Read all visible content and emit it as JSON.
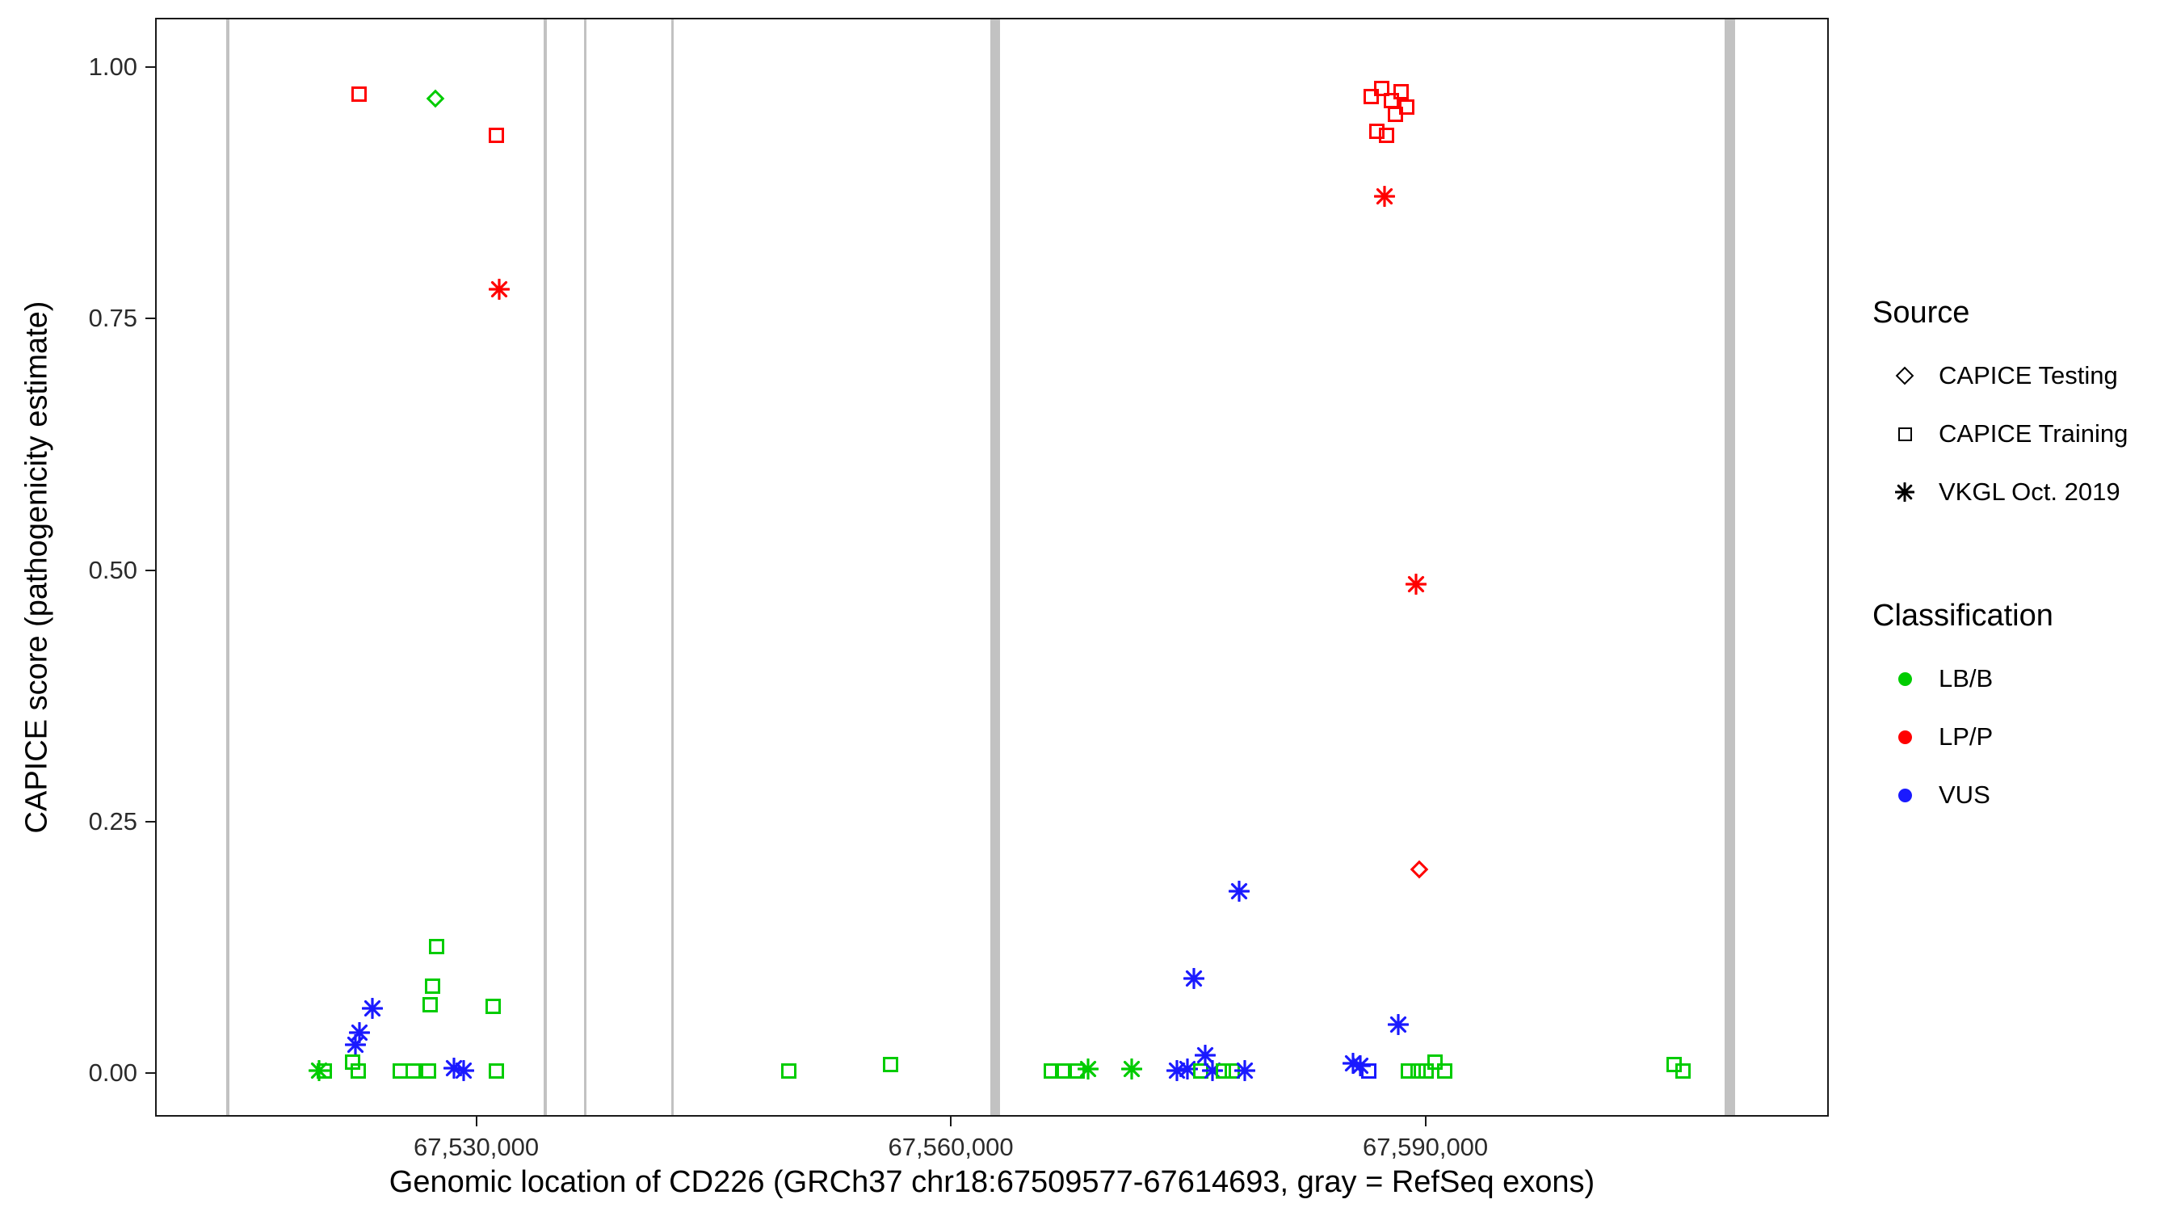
{
  "figure": {
    "title": ""
  },
  "legend": {
    "source": {
      "title": "Source",
      "items": [
        {
          "label": "CAPICE Testing",
          "shape": "diamond"
        },
        {
          "label": "CAPICE Training",
          "shape": "square"
        },
        {
          "label": "VKGL Oct. 2019",
          "shape": "asterisk"
        }
      ]
    },
    "classification": {
      "title": "Classification",
      "items": [
        {
          "label": "LB/B",
          "color_key": "LB/B"
        },
        {
          "label": "LP/P",
          "color_key": "LP/P"
        },
        {
          "label": "VUS",
          "color_key": "VUS"
        }
      ]
    }
  },
  "chart_data": {
    "type": "scatter",
    "title": "",
    "xlabel": "Genomic location of CD226 (GRCh37 chr18:67509577-67614693, gray = RefSeq exons)",
    "ylabel": "CAPICE score (pathogenicity estimate)",
    "xlim": [
      67509700,
      67615500
    ],
    "ylim": [
      -0.043,
      1.049
    ],
    "grid": false,
    "legend_position": "right",
    "x_ticks": [
      {
        "value": 67530000,
        "label": "67,530,000"
      },
      {
        "value": 67560000,
        "label": "67,560,000"
      },
      {
        "value": 67590000,
        "label": "67,590,000"
      }
    ],
    "y_ticks": [
      {
        "value": 0.0,
        "label": "0.00"
      },
      {
        "value": 0.25,
        "label": "0.25"
      },
      {
        "value": 0.5,
        "label": "0.50"
      },
      {
        "value": 0.75,
        "label": "0.75"
      },
      {
        "value": 1.0,
        "label": "1.00"
      }
    ],
    "colors": {
      "LB/B": "#00cc00",
      "LP/P": "#ff0000",
      "VUS": "#1a1aff",
      "exon": "#c2c2c2"
    },
    "shape_legend": {
      "diamond": "CAPICE Testing",
      "square": "CAPICE Training",
      "asterisk": "VKGL Oct. 2019"
    },
    "exons": [
      {
        "x": 67514200,
        "width_bp": 170
      },
      {
        "x": 67534250,
        "width_bp": 200
      },
      {
        "x": 67536800,
        "width_bp": 170
      },
      {
        "x": 67542300,
        "width_bp": 170
      },
      {
        "x": 67562700,
        "width_bp": 620
      },
      {
        "x": 67609150,
        "width_bp": 700
      }
    ],
    "points": [
      {
        "x": 67522510,
        "y": 0.975,
        "shape": "square",
        "class": "LP/P"
      },
      {
        "x": 67527320,
        "y": 0.97,
        "shape": "diamond",
        "class": "LB/B"
      },
      {
        "x": 67531160,
        "y": 0.934,
        "shape": "square",
        "class": "LP/P"
      },
      {
        "x": 67531340,
        "y": 0.781,
        "shape": "asterisk",
        "class": "LP/P"
      },
      {
        "x": 67527410,
        "y": 0.128,
        "shape": "square",
        "class": "LB/B"
      },
      {
        "x": 67527140,
        "y": 0.088,
        "shape": "square",
        "class": "LB/B"
      },
      {
        "x": 67526960,
        "y": 0.07,
        "shape": "square",
        "class": "LB/B"
      },
      {
        "x": 67530980,
        "y": 0.068,
        "shape": "square",
        "class": "LB/B"
      },
      {
        "x": 67523320,
        "y": 0.066,
        "shape": "asterisk",
        "class": "VUS"
      },
      {
        "x": 67522520,
        "y": 0.042,
        "shape": "asterisk",
        "class": "VUS"
      },
      {
        "x": 67522250,
        "y": 0.03,
        "shape": "asterisk",
        "class": "VUS"
      },
      {
        "x": 67519940,
        "y": 0.004,
        "shape": "asterisk",
        "class": "LB/B"
      },
      {
        "x": 67520300,
        "y": 0.004,
        "shape": "square",
        "class": "LB/B"
      },
      {
        "x": 67522080,
        "y": 0.013,
        "shape": "square",
        "class": "LB/B"
      },
      {
        "x": 67522440,
        "y": 0.004,
        "shape": "square",
        "class": "LB/B"
      },
      {
        "x": 67525110,
        "y": 0.004,
        "shape": "square",
        "class": "LB/B"
      },
      {
        "x": 67525910,
        "y": 0.004,
        "shape": "square",
        "class": "LB/B"
      },
      {
        "x": 67526890,
        "y": 0.004,
        "shape": "square",
        "class": "LB/B"
      },
      {
        "x": 67528490,
        "y": 0.007,
        "shape": "asterisk",
        "class": "VUS"
      },
      {
        "x": 67529110,
        "y": 0.004,
        "shape": "asterisk",
        "class": "VUS"
      },
      {
        "x": 67531160,
        "y": 0.004,
        "shape": "square",
        "class": "LB/B"
      },
      {
        "x": 67549670,
        "y": 0.004,
        "shape": "square",
        "class": "LB/B"
      },
      {
        "x": 67556100,
        "y": 0.01,
        "shape": "square",
        "class": "LB/B"
      },
      {
        "x": 67566260,
        "y": 0.004,
        "shape": "square",
        "class": "LB/B"
      },
      {
        "x": 67566970,
        "y": 0.004,
        "shape": "square",
        "class": "LB/B"
      },
      {
        "x": 67567860,
        "y": 0.004,
        "shape": "square",
        "class": "LB/B"
      },
      {
        "x": 67568580,
        "y": 0.006,
        "shape": "asterisk",
        "class": "LB/B"
      },
      {
        "x": 67571350,
        "y": 0.006,
        "shape": "asterisk",
        "class": "LB/B"
      },
      {
        "x": 67574200,
        "y": 0.004,
        "shape": "asterisk",
        "class": "VUS"
      },
      {
        "x": 67574830,
        "y": 0.006,
        "shape": "asterisk",
        "class": "VUS"
      },
      {
        "x": 67575270,
        "y": 0.096,
        "shape": "asterisk",
        "class": "VUS"
      },
      {
        "x": 67575720,
        "y": 0.004,
        "shape": "square",
        "class": "LB/B"
      },
      {
        "x": 67575980,
        "y": 0.02,
        "shape": "asterisk",
        "class": "VUS"
      },
      {
        "x": 67576430,
        "y": 0.004,
        "shape": "asterisk",
        "class": "VUS"
      },
      {
        "x": 67577140,
        "y": 0.004,
        "shape": "square",
        "class": "LB/B"
      },
      {
        "x": 67577680,
        "y": 0.004,
        "shape": "square",
        "class": "LB/B"
      },
      {
        "x": 67578120,
        "y": 0.183,
        "shape": "asterisk",
        "class": "VUS"
      },
      {
        "x": 67578480,
        "y": 0.004,
        "shape": "asterisk",
        "class": "VUS"
      },
      {
        "x": 67586490,
        "y": 0.972,
        "shape": "square",
        "class": "LP/P"
      },
      {
        "x": 67587110,
        "y": 0.98,
        "shape": "square",
        "class": "LP/P"
      },
      {
        "x": 67587730,
        "y": 0.968,
        "shape": "square",
        "class": "LP/P"
      },
      {
        "x": 67588360,
        "y": 0.977,
        "shape": "square",
        "class": "LP/P"
      },
      {
        "x": 67588710,
        "y": 0.962,
        "shape": "square",
        "class": "LP/P"
      },
      {
        "x": 67588000,
        "y": 0.955,
        "shape": "square",
        "class": "LP/P"
      },
      {
        "x": 67586840,
        "y": 0.938,
        "shape": "square",
        "class": "LP/P"
      },
      {
        "x": 67587460,
        "y": 0.934,
        "shape": "square",
        "class": "LP/P"
      },
      {
        "x": 67587290,
        "y": 0.873,
        "shape": "asterisk",
        "class": "LP/P"
      },
      {
        "x": 67589330,
        "y": 0.488,
        "shape": "asterisk",
        "class": "LP/P"
      },
      {
        "x": 67589510,
        "y": 0.204,
        "shape": "diamond",
        "class": "LP/P"
      },
      {
        "x": 67588180,
        "y": 0.05,
        "shape": "asterisk",
        "class": "VUS"
      },
      {
        "x": 67585330,
        "y": 0.012,
        "shape": "asterisk",
        "class": "VUS"
      },
      {
        "x": 67585770,
        "y": 0.009,
        "shape": "asterisk",
        "class": "VUS"
      },
      {
        "x": 67586310,
        "y": 0.004,
        "shape": "square",
        "class": "VUS"
      },
      {
        "x": 67588800,
        "y": 0.004,
        "shape": "square",
        "class": "LB/B"
      },
      {
        "x": 67589430,
        "y": 0.004,
        "shape": "square",
        "class": "LB/B"
      },
      {
        "x": 67589960,
        "y": 0.004,
        "shape": "square",
        "class": "LB/B"
      },
      {
        "x": 67590490,
        "y": 0.013,
        "shape": "square",
        "class": "LB/B"
      },
      {
        "x": 67591120,
        "y": 0.004,
        "shape": "square",
        "class": "LB/B"
      },
      {
        "x": 67605640,
        "y": 0.01,
        "shape": "square",
        "class": "LB/B"
      },
      {
        "x": 67606170,
        "y": 0.004,
        "shape": "square",
        "class": "LB/B"
      }
    ]
  }
}
